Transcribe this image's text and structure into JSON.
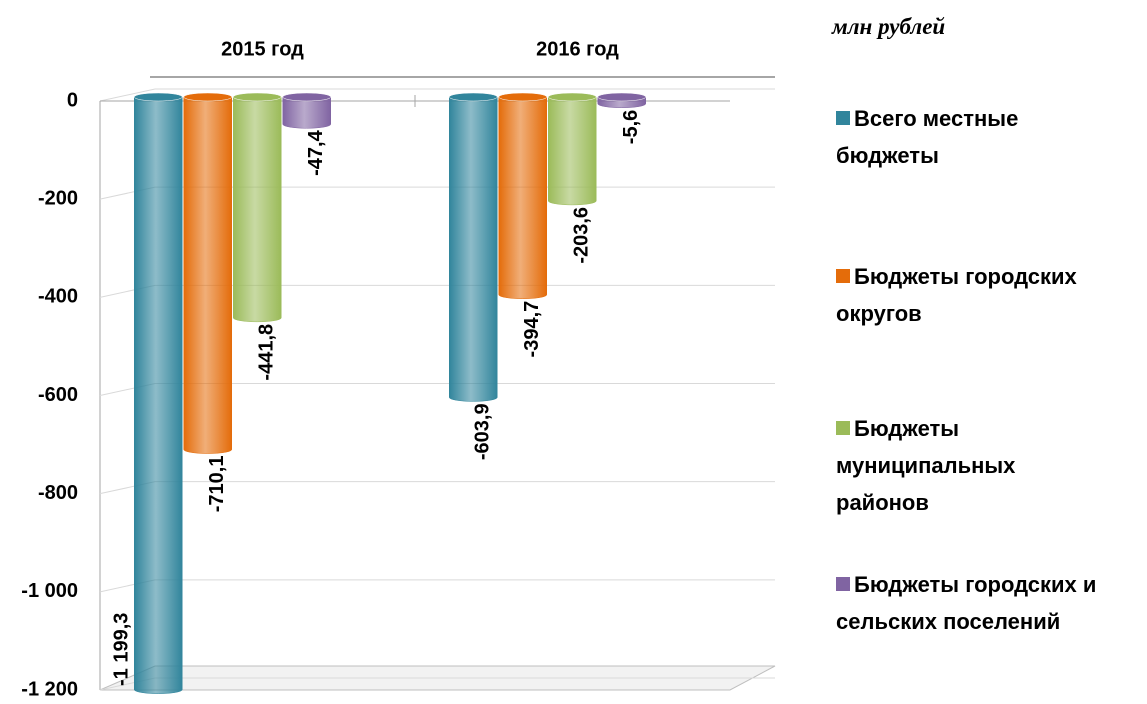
{
  "chart_data": {
    "type": "bar",
    "unit": "млн рублей",
    "categories": [
      "2015 год",
      "2016 год"
    ],
    "series": [
      {
        "name": "Всего местные бюджеты",
        "color": "#31859c",
        "values": [
          -1199.3,
          -603.9
        ],
        "value_labels": [
          "-1 199,3",
          "-603,9"
        ]
      },
      {
        "name": "Бюджеты городских округов",
        "color": "#e46c0a",
        "values": [
          -710.1,
          -394.7
        ],
        "value_labels": [
          "-710,1",
          "-394,7"
        ]
      },
      {
        "name": "Бюджеты муниципальных районов",
        "color": "#9bbb59",
        "values": [
          -441.8,
          -203.6
        ],
        "value_labels": [
          "-441,8",
          "-203,6"
        ]
      },
      {
        "name": "Бюджеты городских и сельских поселений",
        "color": "#8064a2",
        "values": [
          -47.4,
          -5.6
        ],
        "value_labels": [
          "-47,4",
          "-5,6"
        ]
      }
    ],
    "ylim": [
      -1200,
      0
    ],
    "yticks": [
      0,
      -200,
      -400,
      -600,
      -800,
      {
        "value": -1000,
        "label": "-1 000"
      },
      {
        "value": -1200,
        "label": "-1 200"
      }
    ],
    "grid": true,
    "legend": "right"
  }
}
